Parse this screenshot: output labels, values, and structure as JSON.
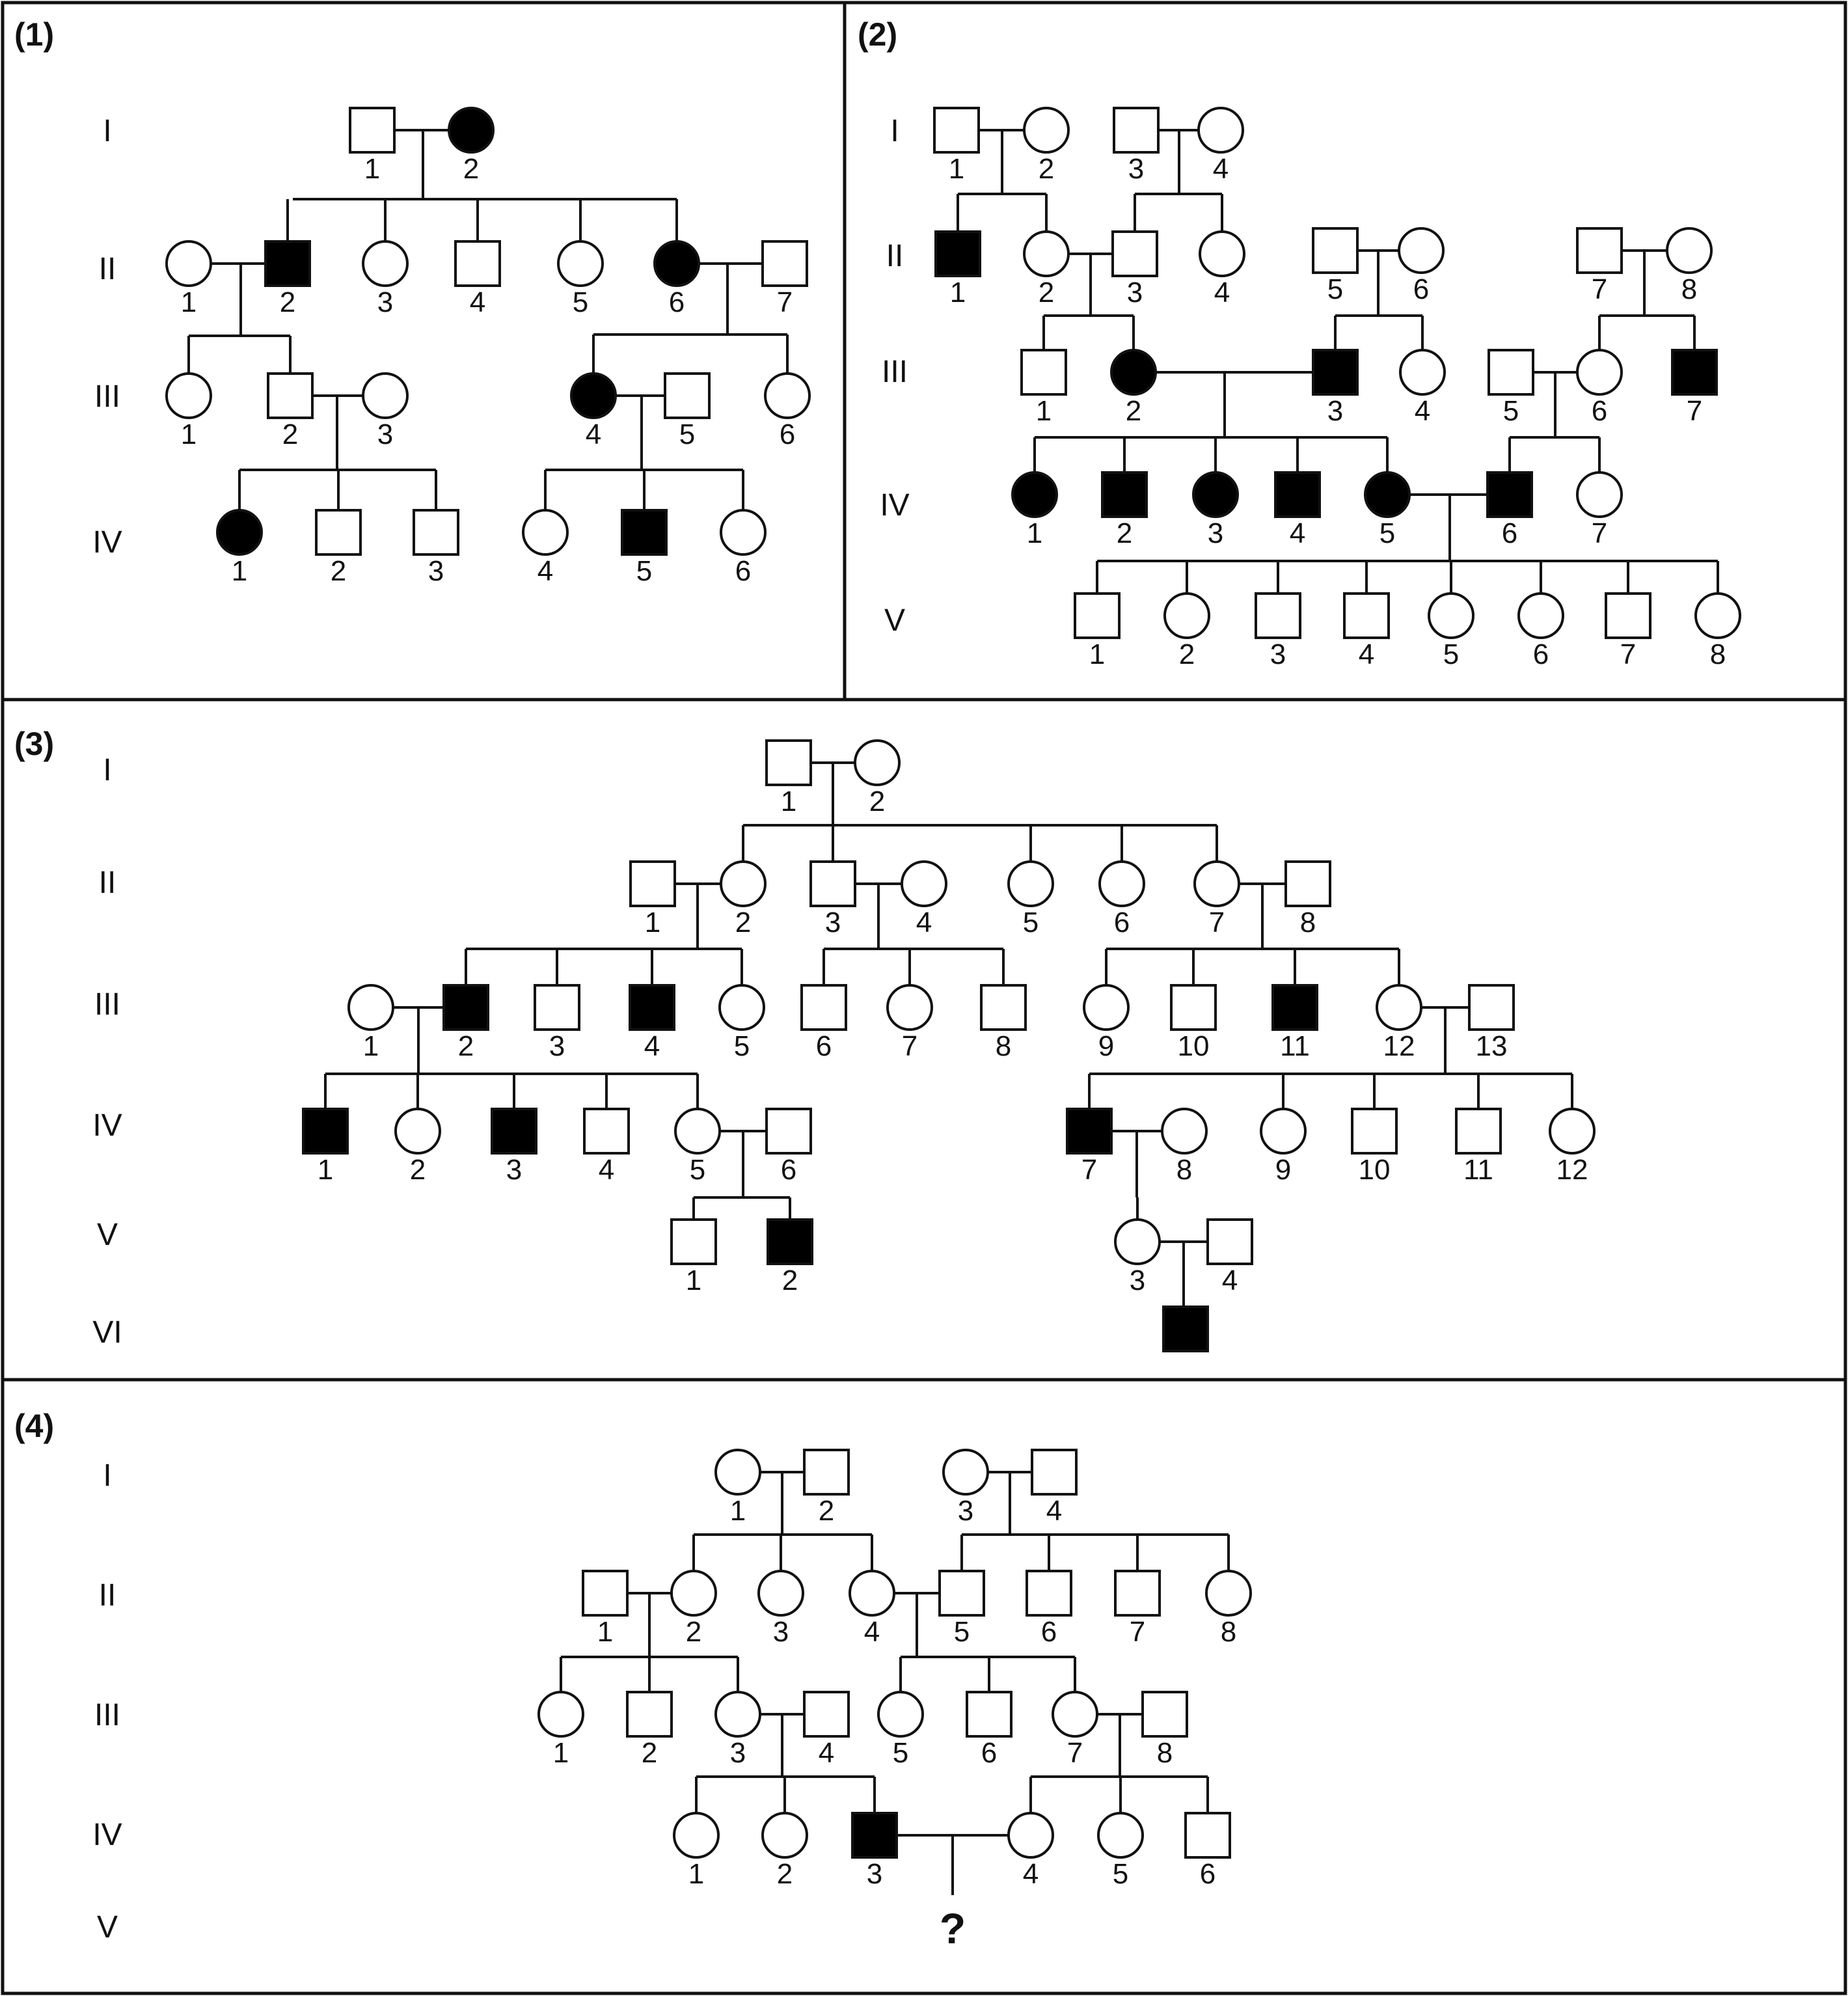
{
  "colors": {
    "line": "#111111",
    "affected": "#000000",
    "unaffected": "#ffffff",
    "background": "#ffffff"
  },
  "panels": [
    {
      "label": "(1)",
      "generations": [
        "I",
        "II",
        "III",
        "IV"
      ],
      "individuals": [
        {
          "id": "I-1",
          "sex": "male",
          "affected": false,
          "label": "1"
        },
        {
          "id": "I-2",
          "sex": "female",
          "affected": true,
          "label": "2"
        },
        {
          "id": "II-1",
          "sex": "female",
          "affected": false,
          "label": "1"
        },
        {
          "id": "II-2",
          "sex": "male",
          "affected": true,
          "label": "2"
        },
        {
          "id": "II-3",
          "sex": "female",
          "affected": false,
          "label": "3"
        },
        {
          "id": "II-4",
          "sex": "male",
          "affected": false,
          "label": "4"
        },
        {
          "id": "II-5",
          "sex": "female",
          "affected": false,
          "label": "5"
        },
        {
          "id": "II-6",
          "sex": "female",
          "affected": true,
          "label": "6"
        },
        {
          "id": "II-7",
          "sex": "male",
          "affected": false,
          "label": "7"
        },
        {
          "id": "III-1",
          "sex": "female",
          "affected": false,
          "label": "1"
        },
        {
          "id": "III-2",
          "sex": "male",
          "affected": false,
          "label": "2"
        },
        {
          "id": "III-3",
          "sex": "female",
          "affected": false,
          "label": "3"
        },
        {
          "id": "III-4",
          "sex": "female",
          "affected": true,
          "label": "4"
        },
        {
          "id": "III-5",
          "sex": "male",
          "affected": false,
          "label": "5"
        },
        {
          "id": "III-6",
          "sex": "female",
          "affected": false,
          "label": "6"
        },
        {
          "id": "IV-1",
          "sex": "female",
          "affected": true,
          "label": "1"
        },
        {
          "id": "IV-2",
          "sex": "male",
          "affected": false,
          "label": "2"
        },
        {
          "id": "IV-3",
          "sex": "male",
          "affected": false,
          "label": "3"
        },
        {
          "id": "IV-4",
          "sex": "female",
          "affected": false,
          "label": "4"
        },
        {
          "id": "IV-5",
          "sex": "male",
          "affected": true,
          "label": "5"
        },
        {
          "id": "IV-6",
          "sex": "female",
          "affected": false,
          "label": "6"
        }
      ]
    },
    {
      "label": "(2)",
      "generations": [
        "I",
        "II",
        "III",
        "IV",
        "V"
      ],
      "individuals": [
        {
          "id": "I-1",
          "sex": "male",
          "affected": false,
          "label": "1"
        },
        {
          "id": "I-2",
          "sex": "female",
          "affected": false,
          "label": "2"
        },
        {
          "id": "I-3",
          "sex": "male",
          "affected": false,
          "label": "3"
        },
        {
          "id": "I-4",
          "sex": "female",
          "affected": false,
          "label": "4"
        },
        {
          "id": "II-1",
          "sex": "male",
          "affected": true,
          "label": "1"
        },
        {
          "id": "II-2",
          "sex": "female",
          "affected": false,
          "label": "2"
        },
        {
          "id": "II-3",
          "sex": "male",
          "affected": false,
          "label": "3"
        },
        {
          "id": "II-4",
          "sex": "female",
          "affected": false,
          "label": "4"
        },
        {
          "id": "II-5",
          "sex": "male",
          "affected": false,
          "label": "5"
        },
        {
          "id": "II-6",
          "sex": "female",
          "affected": false,
          "label": "6"
        },
        {
          "id": "II-7",
          "sex": "male",
          "affected": false,
          "label": "7"
        },
        {
          "id": "II-8",
          "sex": "female",
          "affected": false,
          "label": "8"
        },
        {
          "id": "III-1",
          "sex": "male",
          "affected": false,
          "label": "1"
        },
        {
          "id": "III-2",
          "sex": "female",
          "affected": true,
          "label": "2"
        },
        {
          "id": "III-3",
          "sex": "male",
          "affected": true,
          "label": "3"
        },
        {
          "id": "III-4",
          "sex": "female",
          "affected": false,
          "label": "4"
        },
        {
          "id": "III-5",
          "sex": "male",
          "affected": false,
          "label": "5"
        },
        {
          "id": "III-6",
          "sex": "female",
          "affected": false,
          "label": "6"
        },
        {
          "id": "III-7",
          "sex": "male",
          "affected": true,
          "label": "7"
        },
        {
          "id": "IV-1",
          "sex": "female",
          "affected": true,
          "label": "1"
        },
        {
          "id": "IV-2",
          "sex": "male",
          "affected": true,
          "label": "2"
        },
        {
          "id": "IV-3",
          "sex": "female",
          "affected": true,
          "label": "3"
        },
        {
          "id": "IV-4",
          "sex": "male",
          "affected": true,
          "label": "4"
        },
        {
          "id": "IV-5",
          "sex": "female",
          "affected": true,
          "label": "5"
        },
        {
          "id": "IV-6",
          "sex": "male",
          "affected": true,
          "label": "6"
        },
        {
          "id": "IV-7",
          "sex": "female",
          "affected": false,
          "label": "7"
        },
        {
          "id": "V-1",
          "sex": "male",
          "affected": false,
          "label": "1"
        },
        {
          "id": "V-2",
          "sex": "female",
          "affected": false,
          "label": "2"
        },
        {
          "id": "V-3",
          "sex": "male",
          "affected": false,
          "label": "3"
        },
        {
          "id": "V-4",
          "sex": "male",
          "affected": false,
          "label": "4"
        },
        {
          "id": "V-5",
          "sex": "female",
          "affected": false,
          "label": "5"
        },
        {
          "id": "V-6",
          "sex": "female",
          "affected": false,
          "label": "6"
        },
        {
          "id": "V-7",
          "sex": "male",
          "affected": false,
          "label": "7"
        },
        {
          "id": "V-8",
          "sex": "female",
          "affected": false,
          "label": "8"
        }
      ]
    },
    {
      "label": "(3)",
      "generations": [
        "I",
        "II",
        "III",
        "IV",
        "V",
        "VI"
      ],
      "individuals": [
        {
          "id": "I-1",
          "sex": "male",
          "affected": false,
          "label": "1"
        },
        {
          "id": "I-2",
          "sex": "female",
          "affected": false,
          "label": "2"
        },
        {
          "id": "II-1",
          "sex": "male",
          "affected": false,
          "label": "1"
        },
        {
          "id": "II-2",
          "sex": "female",
          "affected": false,
          "label": "2"
        },
        {
          "id": "II-3",
          "sex": "male",
          "affected": false,
          "label": "3"
        },
        {
          "id": "II-4",
          "sex": "female",
          "affected": false,
          "label": "4"
        },
        {
          "id": "II-5",
          "sex": "female",
          "affected": false,
          "label": "5"
        },
        {
          "id": "II-6",
          "sex": "female",
          "affected": false,
          "label": "6"
        },
        {
          "id": "II-7",
          "sex": "female",
          "affected": false,
          "label": "7"
        },
        {
          "id": "II-8",
          "sex": "male",
          "affected": false,
          "label": "8"
        },
        {
          "id": "III-1",
          "sex": "female",
          "affected": false,
          "label": "1"
        },
        {
          "id": "III-2",
          "sex": "male",
          "affected": true,
          "label": "2"
        },
        {
          "id": "III-3",
          "sex": "male",
          "affected": false,
          "label": "3"
        },
        {
          "id": "III-4",
          "sex": "male",
          "affected": true,
          "label": "4"
        },
        {
          "id": "III-5",
          "sex": "female",
          "affected": false,
          "label": "5"
        },
        {
          "id": "III-6",
          "sex": "male",
          "affected": false,
          "label": "6"
        },
        {
          "id": "III-7",
          "sex": "female",
          "affected": false,
          "label": "7"
        },
        {
          "id": "III-8",
          "sex": "male",
          "affected": false,
          "label": "8"
        },
        {
          "id": "III-9",
          "sex": "female",
          "affected": false,
          "label": "9"
        },
        {
          "id": "III-10",
          "sex": "male",
          "affected": false,
          "label": "10"
        },
        {
          "id": "III-11",
          "sex": "male",
          "affected": true,
          "label": "11"
        },
        {
          "id": "III-12",
          "sex": "female",
          "affected": false,
          "label": "12"
        },
        {
          "id": "III-13",
          "sex": "male",
          "affected": false,
          "label": "13"
        },
        {
          "id": "IV-1",
          "sex": "male",
          "affected": true,
          "label": "1"
        },
        {
          "id": "IV-2",
          "sex": "female",
          "affected": false,
          "label": "2"
        },
        {
          "id": "IV-3",
          "sex": "male",
          "affected": true,
          "label": "3"
        },
        {
          "id": "IV-4",
          "sex": "male",
          "affected": false,
          "label": "4"
        },
        {
          "id": "IV-5",
          "sex": "female",
          "affected": false,
          "label": "5"
        },
        {
          "id": "IV-6",
          "sex": "male",
          "affected": false,
          "label": "6"
        },
        {
          "id": "IV-7",
          "sex": "male",
          "affected": true,
          "label": "7"
        },
        {
          "id": "IV-8",
          "sex": "female",
          "affected": false,
          "label": "8"
        },
        {
          "id": "IV-9",
          "sex": "female",
          "affected": false,
          "label": "9"
        },
        {
          "id": "IV-10",
          "sex": "male",
          "affected": false,
          "label": "10"
        },
        {
          "id": "IV-11",
          "sex": "male",
          "affected": false,
          "label": "11"
        },
        {
          "id": "IV-12",
          "sex": "female",
          "affected": false,
          "label": "12"
        },
        {
          "id": "V-1",
          "sex": "male",
          "affected": false,
          "label": "1"
        },
        {
          "id": "V-2",
          "sex": "male",
          "affected": true,
          "label": "2"
        },
        {
          "id": "V-3",
          "sex": "female",
          "affected": false,
          "label": "3"
        },
        {
          "id": "V-4",
          "sex": "male",
          "affected": false,
          "label": "4"
        },
        {
          "id": "VI-1",
          "sex": "male",
          "affected": true,
          "label": ""
        }
      ]
    },
    {
      "label": "(4)",
      "generations": [
        "I",
        "II",
        "III",
        "IV",
        "V"
      ],
      "question_mark": "?",
      "individuals": [
        {
          "id": "I-1",
          "sex": "female",
          "affected": false,
          "label": "1"
        },
        {
          "id": "I-2",
          "sex": "male",
          "affected": false,
          "label": "2"
        },
        {
          "id": "I-3",
          "sex": "female",
          "affected": false,
          "label": "3"
        },
        {
          "id": "I-4",
          "sex": "male",
          "affected": false,
          "label": "4"
        },
        {
          "id": "II-1",
          "sex": "male",
          "affected": false,
          "label": "1"
        },
        {
          "id": "II-2",
          "sex": "female",
          "affected": false,
          "label": "2"
        },
        {
          "id": "II-3",
          "sex": "female",
          "affected": false,
          "label": "3"
        },
        {
          "id": "II-4",
          "sex": "female",
          "affected": false,
          "label": "4"
        },
        {
          "id": "II-5",
          "sex": "male",
          "affected": false,
          "label": "5"
        },
        {
          "id": "II-6",
          "sex": "male",
          "affected": false,
          "label": "6"
        },
        {
          "id": "II-7",
          "sex": "male",
          "affected": false,
          "label": "7"
        },
        {
          "id": "II-8",
          "sex": "female",
          "affected": false,
          "label": "8"
        },
        {
          "id": "III-1",
          "sex": "female",
          "affected": false,
          "label": "1"
        },
        {
          "id": "III-2",
          "sex": "male",
          "affected": false,
          "label": "2"
        },
        {
          "id": "III-3",
          "sex": "female",
          "affected": false,
          "label": "3"
        },
        {
          "id": "III-4",
          "sex": "male",
          "affected": false,
          "label": "4"
        },
        {
          "id": "III-5",
          "sex": "female",
          "affected": false,
          "label": "5"
        },
        {
          "id": "III-6",
          "sex": "male",
          "affected": false,
          "label": "6"
        },
        {
          "id": "III-7",
          "sex": "female",
          "affected": false,
          "label": "7"
        },
        {
          "id": "III-8",
          "sex": "male",
          "affected": false,
          "label": "8"
        },
        {
          "id": "IV-1",
          "sex": "female",
          "affected": false,
          "label": "1"
        },
        {
          "id": "IV-2",
          "sex": "female",
          "affected": false,
          "label": "2"
        },
        {
          "id": "IV-3",
          "sex": "male",
          "affected": true,
          "label": "3"
        },
        {
          "id": "IV-4",
          "sex": "female",
          "affected": false,
          "label": "4"
        },
        {
          "id": "IV-5",
          "sex": "female",
          "affected": false,
          "label": "5"
        },
        {
          "id": "IV-6",
          "sex": "male",
          "affected": false,
          "label": "6"
        }
      ]
    }
  ]
}
